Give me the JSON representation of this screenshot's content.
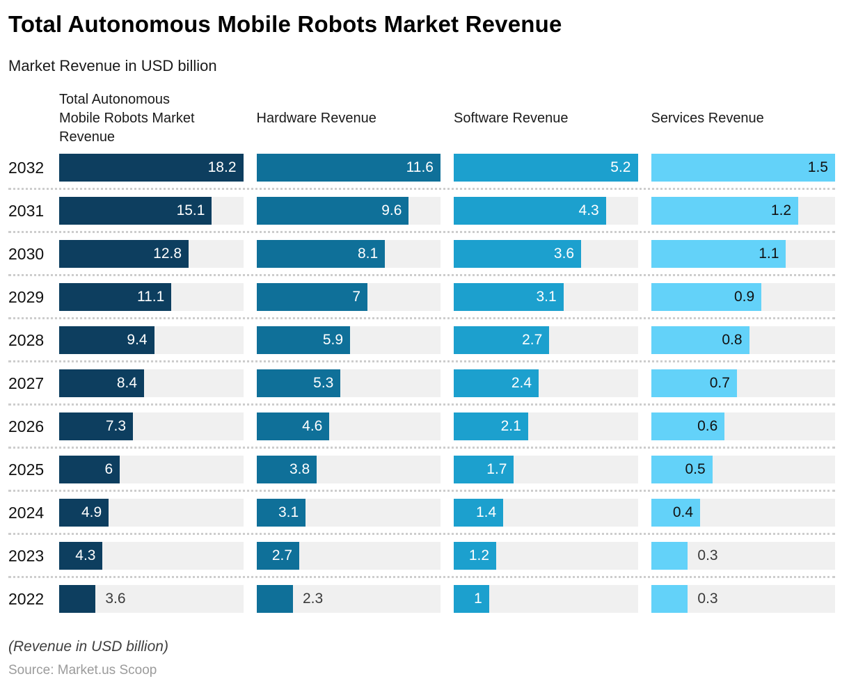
{
  "header": {
    "title": "Total Autonomous Mobile Robots Market Revenue",
    "subtitle": "Market Revenue in USD billion"
  },
  "footer": {
    "note": "(Revenue in USD billion)",
    "source": "Source: Market.us Scoop"
  },
  "chart_data": {
    "type": "bar",
    "orientation": "horizontal",
    "track_color": "#f0f0f0",
    "outside_label_color": "#3a3a3a",
    "categories": [
      "2032",
      "2031",
      "2030",
      "2029",
      "2028",
      "2027",
      "2026",
      "2025",
      "2024",
      "2023",
      "2022"
    ],
    "series": [
      {
        "name": "Total Autonomous Mobile Robots Market Revenue",
        "color": "#0d3e5f",
        "label_color_inside": "#ffffff",
        "axis_max": 18.2,
        "values": [
          18.2,
          15.1,
          12.8,
          11.1,
          9.4,
          8.4,
          7.3,
          6,
          4.9,
          4.3,
          3.6
        ]
      },
      {
        "name": "Hardware Revenue",
        "color": "#0f7099",
        "label_color_inside": "#ffffff",
        "axis_max": 11.6,
        "values": [
          11.6,
          9.6,
          8.1,
          7,
          5.9,
          5.3,
          4.6,
          3.8,
          3.1,
          2.7,
          2.3
        ]
      },
      {
        "name": "Software Revenue",
        "color": "#1ca0ce",
        "label_color_inside": "#ffffff",
        "axis_max": 5.2,
        "values": [
          5.2,
          4.3,
          3.6,
          3.1,
          2.7,
          2.4,
          2.1,
          1.7,
          1.4,
          1.2,
          1
        ]
      },
      {
        "name": "Services Revenue",
        "color": "#63d2f9",
        "label_color_inside": "#111111",
        "axis_max": 1.5,
        "values": [
          1.5,
          1.2,
          1.1,
          0.9,
          0.8,
          0.7,
          0.6,
          0.5,
          0.4,
          0.3,
          0.3
        ]
      }
    ]
  }
}
